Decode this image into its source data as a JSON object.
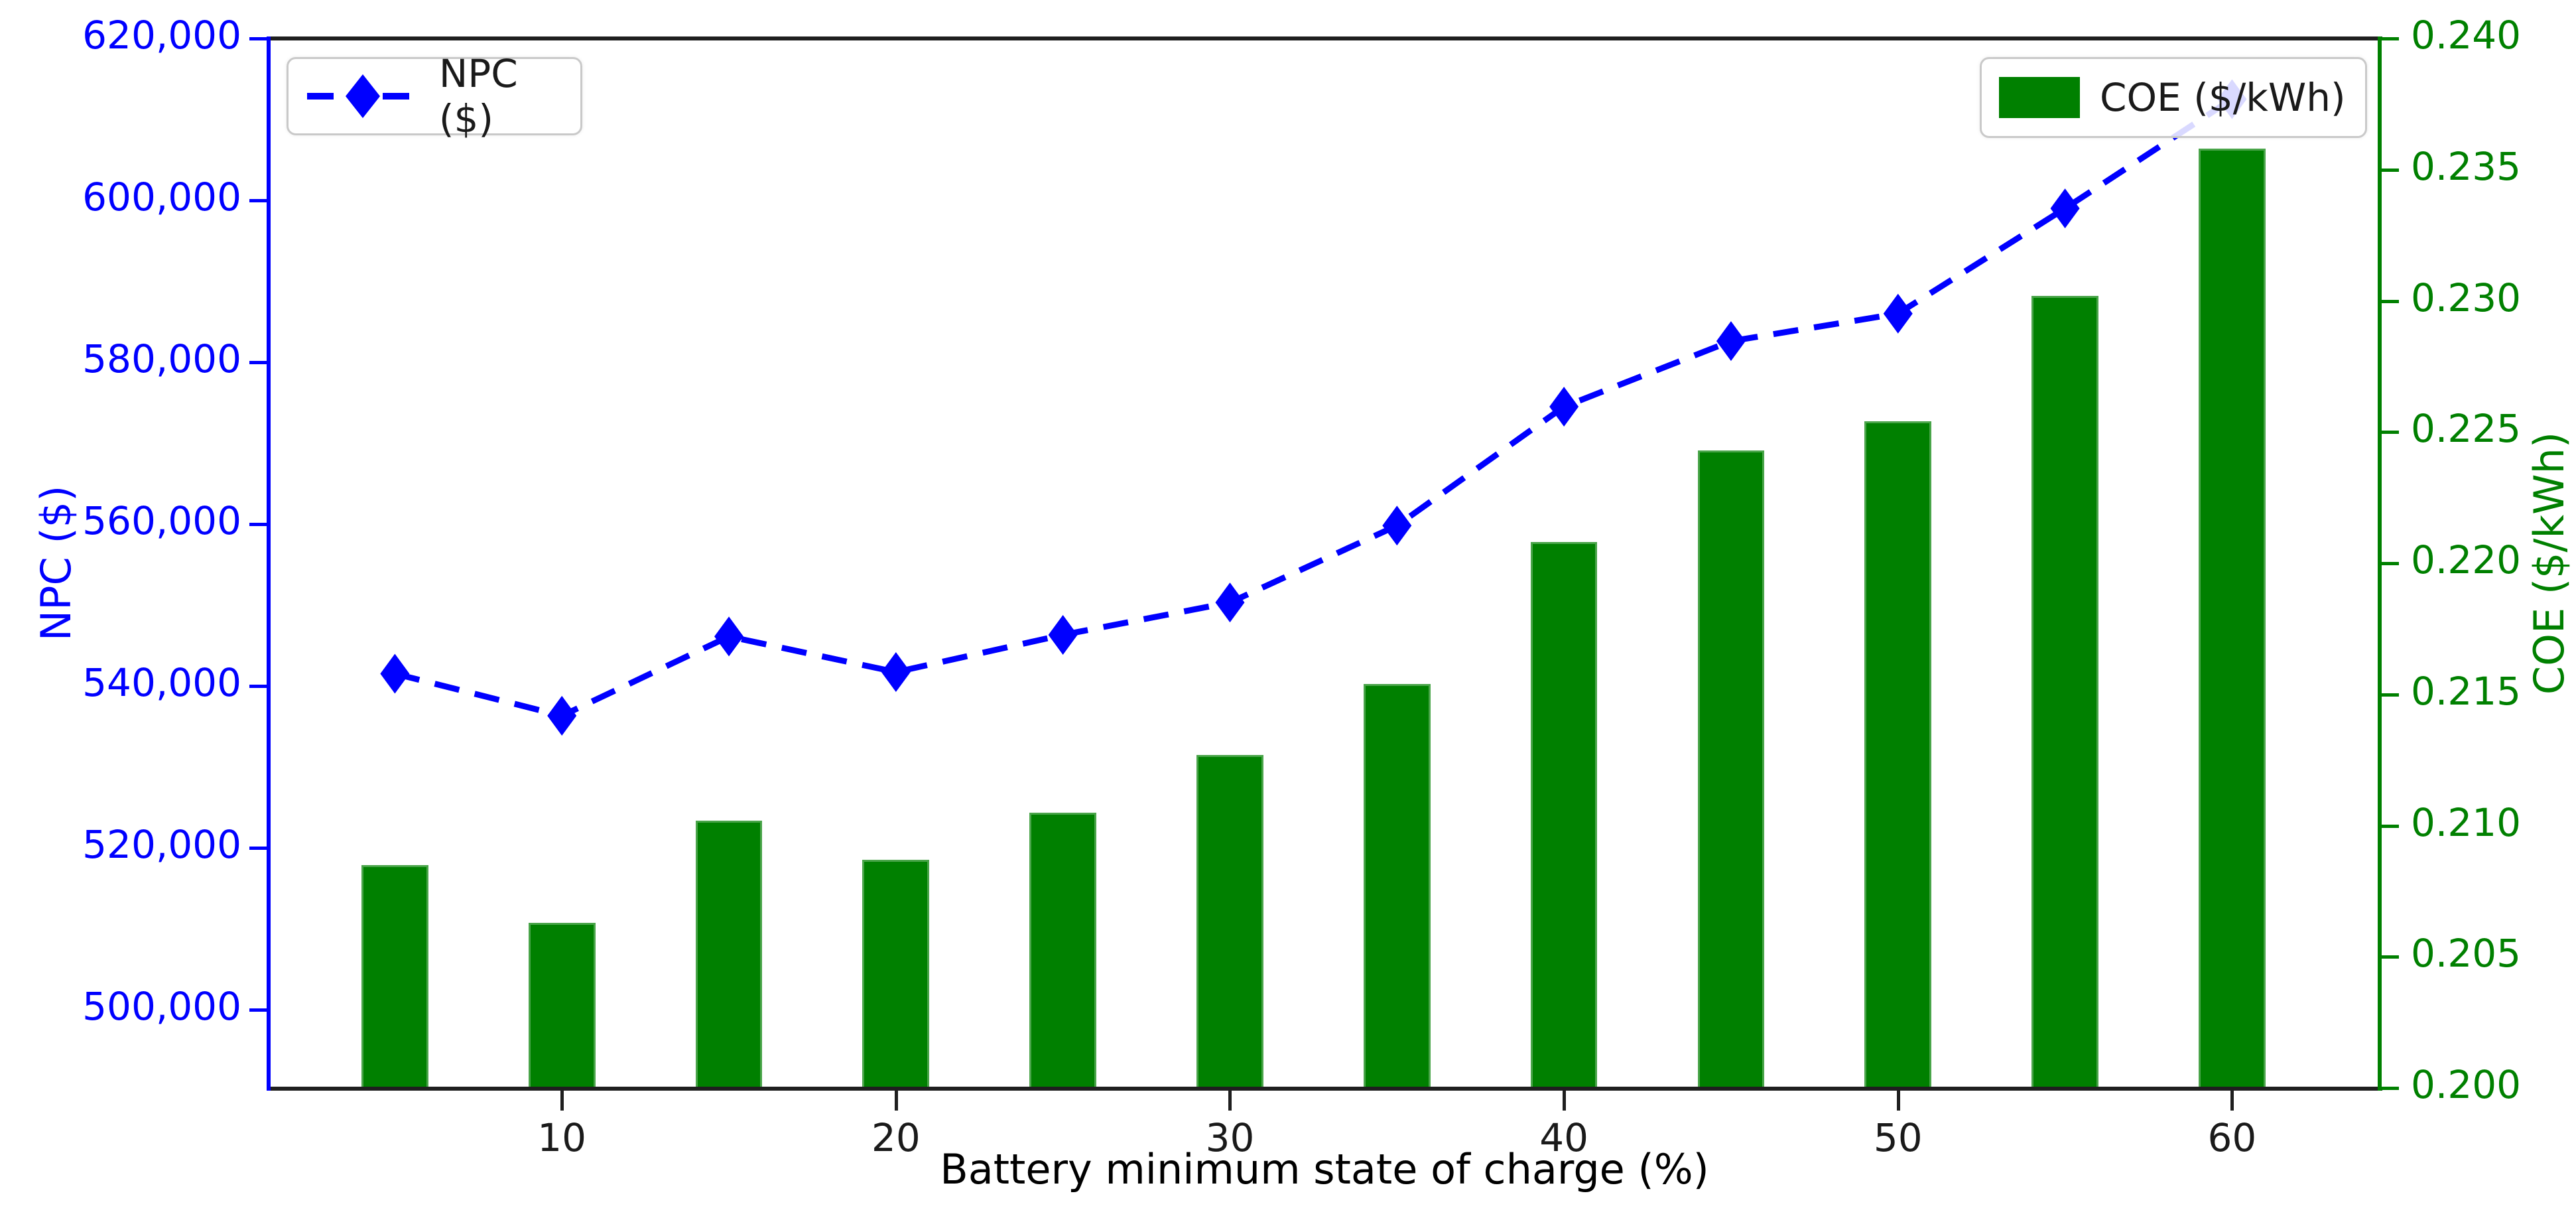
{
  "chart_data": {
    "type": "combo",
    "x": [
      5,
      10,
      15,
      20,
      25,
      30,
      35,
      40,
      45,
      50,
      55,
      60
    ],
    "series": [
      {
        "name": "NPC ($)",
        "type": "line",
        "axis": "left",
        "color": "#0000ff",
        "linestyle": "dashed",
        "marker": "thin-diamond",
        "values": [
          541500,
          536300,
          546100,
          541700,
          546300,
          550300,
          559800,
          574500,
          582600,
          586000,
          599000,
          612500
        ]
      },
      {
        "name": "COE ($/kWh)",
        "type": "bar",
        "axis": "right",
        "color": "#008000",
        "edge_color": "#4aa54a",
        "values": [
          0.2085,
          0.2063,
          0.2102,
          0.2087,
          0.2105,
          0.2127,
          0.2154,
          0.2208,
          0.2243,
          0.2254,
          0.2302,
          0.2358
        ]
      }
    ],
    "bar_width_units": 2.0,
    "xlabel": "Battery minimum state of charge (%)",
    "xlim": [
      1.2,
      64.4
    ],
    "x_ticks": [
      {
        "value": 10,
        "label": "10"
      },
      {
        "value": 20,
        "label": "20"
      },
      {
        "value": 30,
        "label": "30"
      },
      {
        "value": 40,
        "label": "40"
      },
      {
        "value": 50,
        "label": "50"
      },
      {
        "value": 60,
        "label": "60"
      }
    ],
    "left_axis": {
      "label": "NPC ($)",
      "color": "#0000ff",
      "lim": [
        490300,
        620000
      ],
      "ticks": [
        {
          "value": 500000,
          "label": "500,000"
        },
        {
          "value": 520000,
          "label": "520,000"
        },
        {
          "value": 540000,
          "label": "540,000"
        },
        {
          "value": 560000,
          "label": "560,000"
        },
        {
          "value": 580000,
          "label": "580,000"
        },
        {
          "value": 600000,
          "label": "600,000"
        },
        {
          "value": 620000,
          "label": "620,000"
        }
      ]
    },
    "right_axis": {
      "label": "COE ($/kWh)",
      "color": "#008000",
      "lim": [
        0.2,
        0.24
      ],
      "ticks": [
        {
          "value": 0.2,
          "label": "0.200"
        },
        {
          "value": 0.205,
          "label": "0.205"
        },
        {
          "value": 0.21,
          "label": "0.210"
        },
        {
          "value": 0.215,
          "label": "0.215"
        },
        {
          "value": 0.22,
          "label": "0.220"
        },
        {
          "value": 0.225,
          "label": "0.225"
        },
        {
          "value": 0.23,
          "label": "0.230"
        },
        {
          "value": 0.235,
          "label": "0.235"
        },
        {
          "value": 0.24,
          "label": "0.240"
        }
      ]
    },
    "legend": {
      "npc_label": "NPC ($)",
      "coe_label": "COE ($/kWh)"
    },
    "grid": false,
    "legend_positions": [
      "upper-left",
      "upper-right"
    ]
  }
}
